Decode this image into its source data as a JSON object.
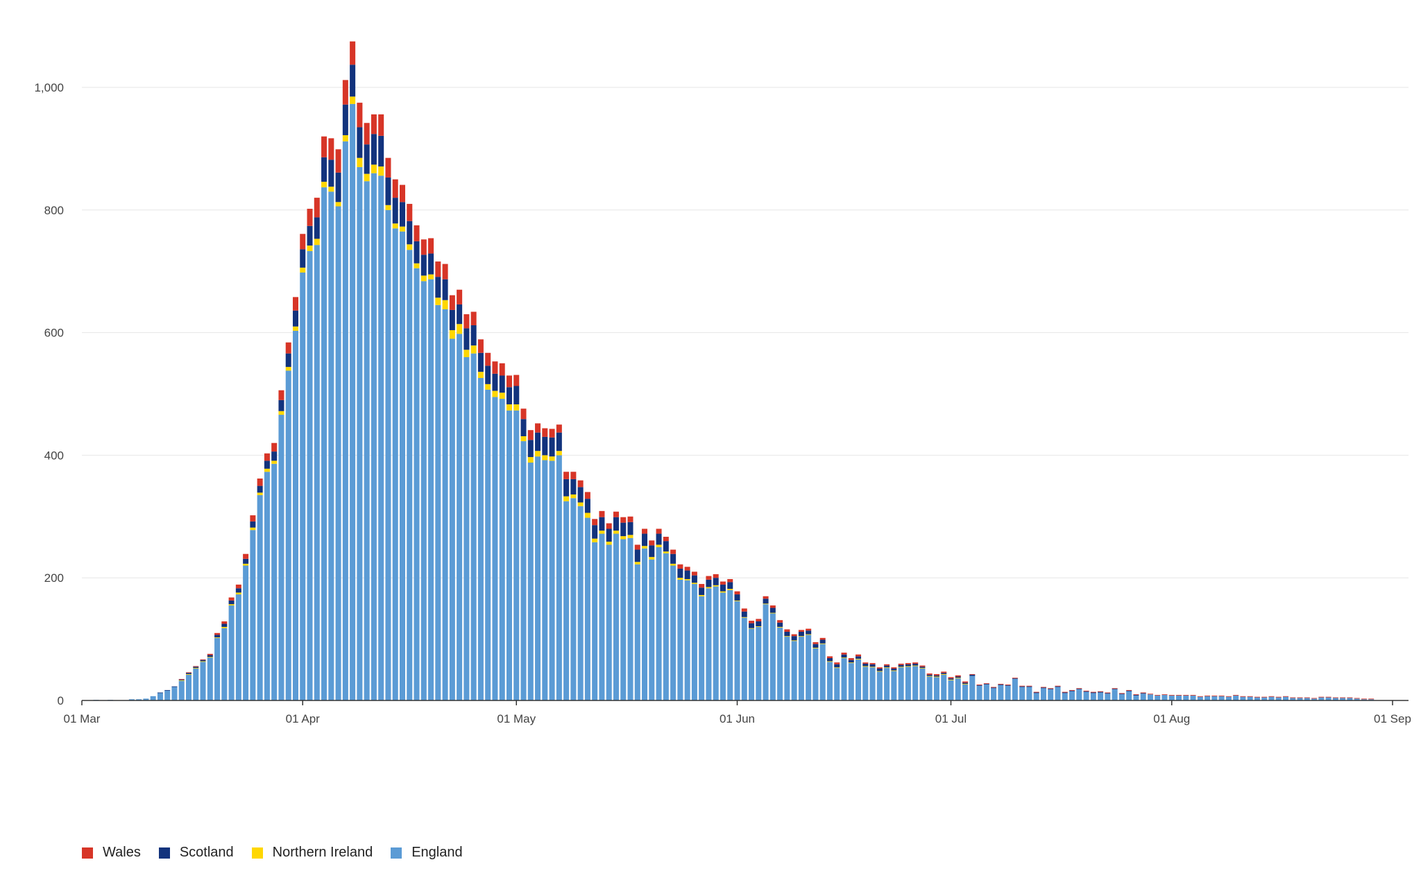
{
  "chart_data": {
    "type": "bar",
    "stacked": true,
    "title": "",
    "xlabel": "",
    "ylabel": "",
    "ylim": [
      0,
      1080
    ],
    "y_ticks": [
      0,
      200,
      400,
      600,
      800,
      1000
    ],
    "y_tick_labels": [
      "0",
      "200",
      "400",
      "600",
      "800",
      "1,000"
    ],
    "x_range": [
      "2020-03-01",
      "2020-09-01"
    ],
    "x_ticks": [
      {
        "date": "2020-03-01",
        "label": "01 Mar"
      },
      {
        "date": "2020-04-01",
        "label": "01 Apr"
      },
      {
        "date": "2020-05-01",
        "label": "01 May"
      },
      {
        "date": "2020-06-01",
        "label": "01 Jun"
      },
      {
        "date": "2020-07-01",
        "label": "01 Jul"
      },
      {
        "date": "2020-08-01",
        "label": "01 Aug"
      },
      {
        "date": "2020-09-01",
        "label": "01 Sep"
      }
    ],
    "grid": true,
    "legend_position": "bottom-left",
    "series": [
      {
        "name": "England",
        "color": "#5b9bd5",
        "values": [
          0,
          0,
          1,
          0,
          1,
          0,
          0,
          2,
          2,
          3,
          7,
          12,
          16,
          22,
          32,
          42,
          52,
          63,
          70,
          102,
          118,
          155,
          173,
          220,
          278,
          335,
          373,
          386,
          466,
          538,
          603,
          698,
          733,
          743,
          837,
          830,
          806,
          912,
          973,
          870,
          847,
          860,
          856,
          800,
          770,
          765,
          735,
          705,
          684,
          687,
          645,
          638,
          590,
          598,
          560,
          566,
          526,
          507,
          495,
          492,
          473,
          473,
          423,
          388,
          398,
          392,
          391,
          400,
          325,
          330,
          317,
          298,
          258,
          272,
          254,
          272,
          263,
          265,
          222,
          248,
          230,
          250,
          240,
          220,
          197,
          196,
          190,
          170,
          183,
          186,
          176,
          180,
          162,
          135,
          117,
          120,
          157,
          142,
          119,
          104,
          97,
          104,
          107,
          85,
          92,
          63,
          53,
          69,
          61,
          67,
          55,
          54,
          47,
          53,
          48,
          54,
          55,
          56,
          52,
          39,
          38,
          42,
          33,
          36,
          26,
          40,
          24,
          26,
          20,
          25,
          24,
          35,
          22,
          22,
          12,
          20,
          18,
          22,
          12,
          15,
          18,
          14,
          12,
          13,
          11,
          18,
          10,
          15,
          8,
          11,
          10,
          8,
          9,
          8,
          8,
          8,
          8,
          6,
          7,
          7,
          7,
          6,
          8,
          6,
          6,
          5,
          5,
          6,
          5,
          6,
          4,
          4,
          4,
          3,
          5,
          5,
          4,
          4,
          4,
          3,
          2,
          2
        ]
      },
      {
        "name": "Northern Ireland",
        "color": "#ffd700",
        "values": [
          0,
          0,
          0,
          0,
          0,
          0,
          0,
          0,
          0,
          0,
          0,
          0,
          0,
          0,
          1,
          1,
          1,
          1,
          1,
          1,
          2,
          2,
          3,
          3,
          4,
          4,
          5,
          5,
          6,
          6,
          7,
          8,
          9,
          10,
          9,
          8,
          7,
          10,
          12,
          15,
          12,
          14,
          15,
          8,
          8,
          8,
          9,
          8,
          9,
          8,
          12,
          15,
          14,
          16,
          12,
          13,
          10,
          9,
          10,
          10,
          10,
          10,
          8,
          9,
          9,
          8,
          7,
          7,
          8,
          6,
          6,
          8,
          6,
          5,
          5,
          5,
          5,
          5,
          4,
          4,
          4,
          4,
          3,
          3,
          3,
          2,
          2,
          2,
          2,
          2,
          2,
          2,
          1,
          1,
          1,
          1,
          1,
          1,
          1,
          1,
          1,
          1,
          1,
          1,
          1,
          1,
          1,
          1,
          1,
          1,
          1,
          1,
          1,
          1,
          1,
          1,
          1,
          1,
          1,
          1,
          1,
          1,
          1,
          1,
          1,
          0,
          0,
          0,
          0,
          0,
          0,
          0,
          0,
          0,
          0,
          0,
          0,
          0,
          0,
          0,
          0,
          0,
          0,
          0,
          0,
          0,
          0,
          0,
          0,
          0,
          0,
          0,
          0,
          0,
          0,
          0,
          0,
          0,
          0,
          0,
          0,
          0,
          0,
          0,
          0,
          0,
          0,
          0,
          0,
          0,
          0,
          0,
          0,
          0,
          0,
          0,
          0,
          0,
          0,
          0,
          0,
          0
        ]
      },
      {
        "name": "Scotland",
        "color": "#12337d",
        "values": [
          0,
          0,
          0,
          0,
          0,
          0,
          0,
          0,
          0,
          0,
          0,
          1,
          1,
          1,
          1,
          2,
          2,
          2,
          3,
          4,
          5,
          6,
          7,
          8,
          10,
          11,
          13,
          15,
          18,
          22,
          26,
          30,
          32,
          35,
          40,
          44,
          48,
          50,
          52,
          50,
          48,
          50,
          50,
          45,
          42,
          40,
          38,
          36,
          34,
          34,
          34,
          34,
          33,
          32,
          35,
          33,
          31,
          30,
          28,
          28,
          28,
          30,
          28,
          28,
          30,
          30,
          31,
          30,
          28,
          25,
          25,
          23,
          22,
          22,
          21,
          22,
          22,
          21,
          20,
          20,
          19,
          18,
          17,
          16,
          15,
          14,
          12,
          12,
          12,
          12,
          11,
          11,
          10,
          9,
          8,
          8,
          8,
          8,
          7,
          7,
          7,
          7,
          6,
          6,
          6,
          5,
          5,
          5,
          4,
          4,
          4,
          4,
          4,
          3,
          3,
          3,
          3,
          3,
          2,
          2,
          2,
          2,
          2,
          2,
          2,
          2,
          1,
          1,
          1,
          1,
          1,
          1,
          1,
          1,
          1,
          1,
          1,
          1,
          1,
          1,
          1,
          1,
          1,
          1,
          1,
          1,
          1,
          1,
          1,
          1,
          0,
          0,
          0,
          0,
          0,
          0,
          0,
          0,
          0,
          0,
          0,
          0,
          0,
          0,
          0,
          0,
          0,
          0,
          0,
          0,
          0,
          0,
          0,
          0,
          0,
          0,
          0,
          0,
          0,
          0,
          0,
          0
        ]
      },
      {
        "name": "Wales",
        "color": "#d73527",
        "values": [
          0,
          0,
          0,
          0,
          0,
          0,
          0,
          0,
          0,
          0,
          0,
          0,
          0,
          0,
          1,
          1,
          1,
          1,
          2,
          3,
          4,
          5,
          6,
          8,
          10,
          12,
          12,
          14,
          16,
          18,
          22,
          25,
          28,
          32,
          34,
          35,
          38,
          40,
          38,
          40,
          35,
          32,
          35,
          32,
          30,
          28,
          28,
          26,
          25,
          25,
          25,
          25,
          24,
          24,
          23,
          22,
          22,
          21,
          20,
          20,
          19,
          18,
          17,
          16,
          15,
          14,
          14,
          13,
          12,
          12,
          11,
          11,
          10,
          10,
          9,
          9,
          9,
          9,
          8,
          8,
          8,
          8,
          7,
          7,
          7,
          6,
          6,
          6,
          6,
          6,
          5,
          5,
          5,
          5,
          4,
          4,
          4,
          4,
          4,
          4,
          3,
          3,
          3,
          3,
          3,
          3,
          3,
          3,
          3,
          3,
          2,
          2,
          2,
          2,
          2,
          2,
          2,
          2,
          2,
          2,
          2,
          2,
          2,
          2,
          2,
          1,
          1,
          1,
          1,
          1,
          1,
          1,
          1,
          1,
          1,
          1,
          1,
          1,
          1,
          1,
          1,
          1,
          1,
          1,
          1,
          1,
          1,
          1,
          1,
          1,
          1,
          1,
          1,
          1,
          1,
          1,
          1,
          1,
          1,
          1,
          1,
          1,
          1,
          1,
          1,
          1,
          1,
          1,
          1,
          1,
          1,
          1,
          1,
          1,
          1,
          1,
          1,
          1,
          1,
          1,
          1,
          1
        ]
      }
    ]
  },
  "legend": [
    {
      "label": "Wales",
      "color": "#d73527"
    },
    {
      "label": "Scotland",
      "color": "#12337d"
    },
    {
      "label": "Northern Ireland",
      "color": "#ffd700"
    },
    {
      "label": "England",
      "color": "#5b9bd5"
    }
  ]
}
